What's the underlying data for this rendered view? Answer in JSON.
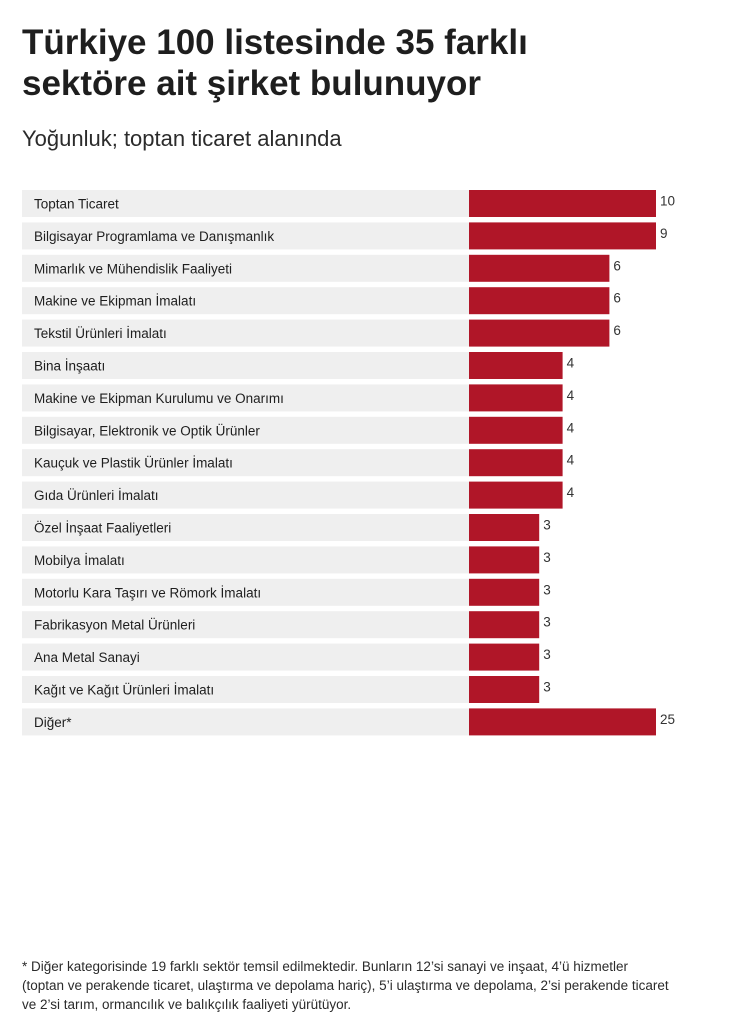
{
  "header": {
    "title_line1": "Türkiye 100 listesinde 35 farklı",
    "title_line2": "sektöre ait şirket bulunuyor",
    "subtitle": "Yoğunluk; toptan ticaret alanında"
  },
  "colors": {
    "bar": "#b01628",
    "row_bg": "#efefef",
    "text": "#1e1e1e"
  },
  "chart_data": {
    "type": "bar",
    "orientation": "horizontal",
    "categories": [
      "Toptan Ticaret",
      "Bilgisayar Programlama ve Danışmanlık",
      "Mimarlık ve Mühendislik Faaliyeti",
      "Makine ve Ekipman İmalatı",
      "Tekstil Ürünleri İmalatı",
      "Bina İnşaatı",
      "Makine ve Ekipman Kurulumu ve Onarımı",
      "Bilgisayar, Elektronik ve Optik Ürünler",
      "Kauçuk ve Plastik Ürünler İmalatı",
      "Gıda Ürünleri İmalatı",
      "Özel İnşaat Faaliyetleri",
      "Mobilya İmalatı",
      "Motorlu Kara Taşırı ve Römork İmalatı",
      "Fabrikasyon Metal Ürünleri",
      "Ana Metal Sanayi",
      "Kağıt ve Kağıt Ürünleri İmalatı",
      "Diğer*"
    ],
    "values": [
      10,
      9,
      6,
      6,
      6,
      4,
      4,
      4,
      4,
      4,
      3,
      3,
      3,
      3,
      3,
      3,
      25
    ],
    "data_labels": [
      "10",
      "9",
      "6",
      "6",
      "6",
      "4",
      "4",
      "4",
      "4",
      "4",
      "3",
      "3",
      "3",
      "3",
      "3",
      "3",
      "25"
    ],
    "grid": false,
    "legend": "none"
  },
  "footnote": "* Diğer kategorisinde 19 farklı sektör temsil edilmektedir. Bunların 12’si sanayi ve inşaat, 4’ü hizmetler\n(toptan ve perakende ticaret, ulaştırma ve depolama hariç), 5’i ulaştırma ve depolama, 2’si perakende ticaret\nve 2’si tarım, ormancılık ve balıkçılık faaliyeti yürütüyor."
}
